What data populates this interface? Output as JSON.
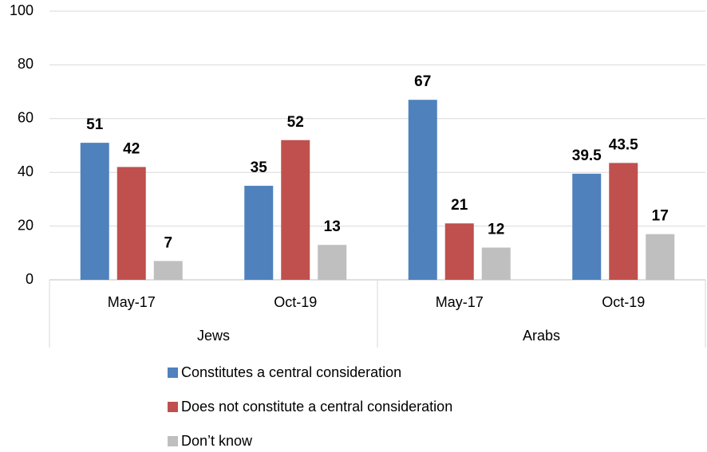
{
  "chart_data": {
    "type": "bar",
    "categories": [
      "May-17",
      "Oct-19",
      "May-17",
      "Oct-19"
    ],
    "category_groups": [
      "Jews",
      "Jews",
      "Arabs",
      "Arabs"
    ],
    "series": [
      {
        "name": "Constitutes a central consideration",
        "color": "#4f81bd",
        "values": [
          51,
          35,
          67,
          39.5
        ]
      },
      {
        "name": "Does not constitute a central consideration",
        "color": "#c0504d",
        "values": [
          42,
          52,
          21,
          43.5
        ]
      },
      {
        "name": "Don’t know",
        "color": "#bfbfbf",
        "values": [
          7,
          13,
          12,
          17
        ]
      }
    ],
    "ylim": [
      0,
      100
    ],
    "yticks": [
      0,
      20,
      40,
      60,
      80,
      100
    ],
    "grid": true,
    "legend": "bottom"
  }
}
